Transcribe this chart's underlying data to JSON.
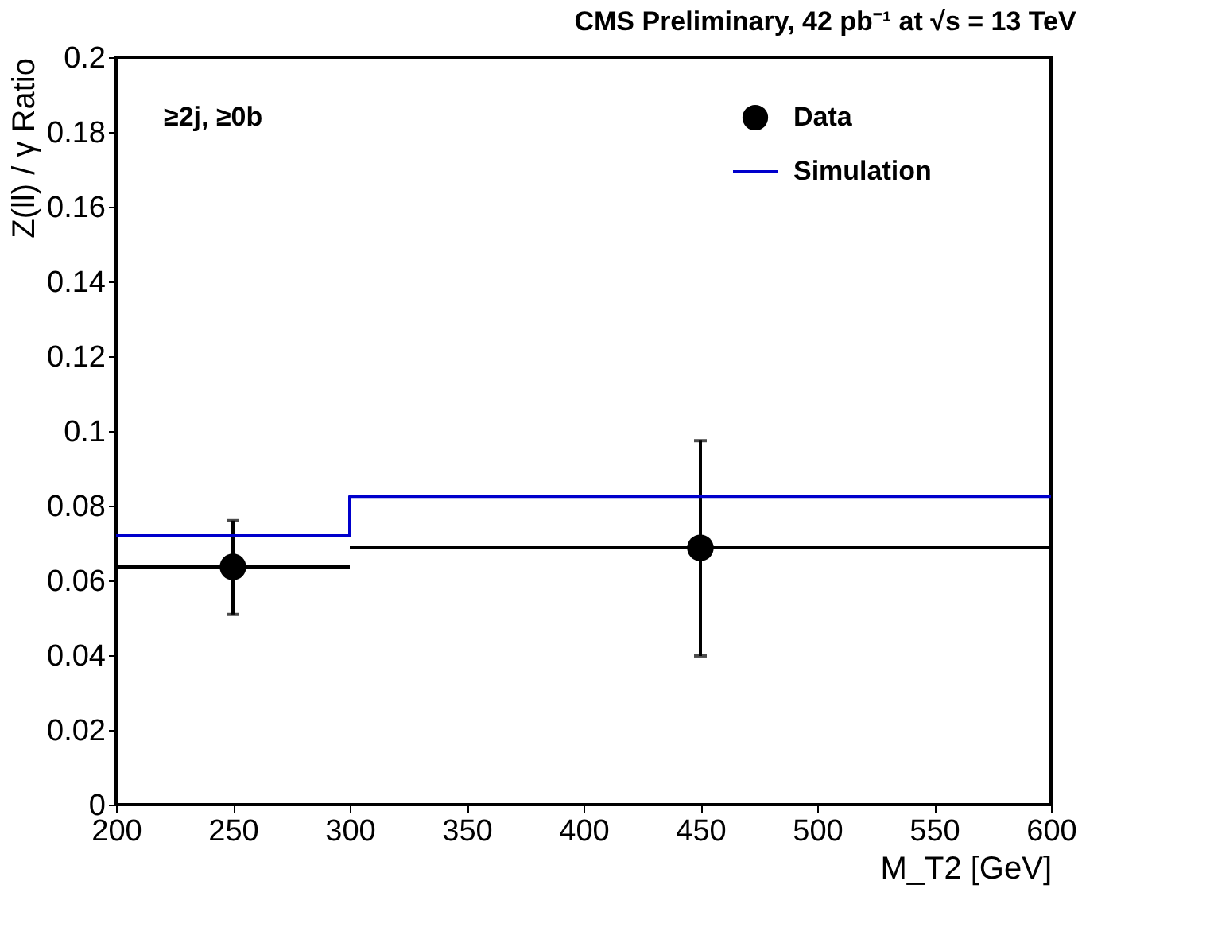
{
  "chart_data": {
    "type": "scatter",
    "title": "CMS Preliminary,  42 pb⁻¹ at  √s = 13 TeV",
    "xlabel": "M_T2 [GeV]",
    "ylabel": "Z(ll) / γ Ratio",
    "annotations": [
      "≥2j,  ≥0b"
    ],
    "xlim": [
      200,
      600
    ],
    "xticks": [
      200,
      250,
      300,
      350,
      400,
      450,
      500,
      550,
      600
    ],
    "ylim": [
      0,
      0.2
    ],
    "yticks": [
      0,
      0.02,
      0.04,
      0.06,
      0.08,
      0.1,
      0.12,
      0.14,
      0.16,
      0.18,
      0.2
    ],
    "legend": "top right",
    "series": [
      {
        "name": "Data",
        "type": "scatter",
        "marker": "circle",
        "color": "#000000",
        "x": [
          250,
          450
        ],
        "values": [
          0.0636,
          0.0687
        ],
        "errors": [
          [
            0.0509,
            0.076
          ],
          [
            0.0398,
            0.0974
          ]
        ],
        "xerrors": [
          [
            200,
            300
          ],
          [
            300,
            600
          ]
        ]
      },
      {
        "name": "Simulation",
        "type": "step",
        "color": "#0000cc",
        "x": [
          200,
          300,
          600
        ],
        "values": [
          0.0719,
          0.0825,
          0.0825
        ]
      }
    ]
  }
}
